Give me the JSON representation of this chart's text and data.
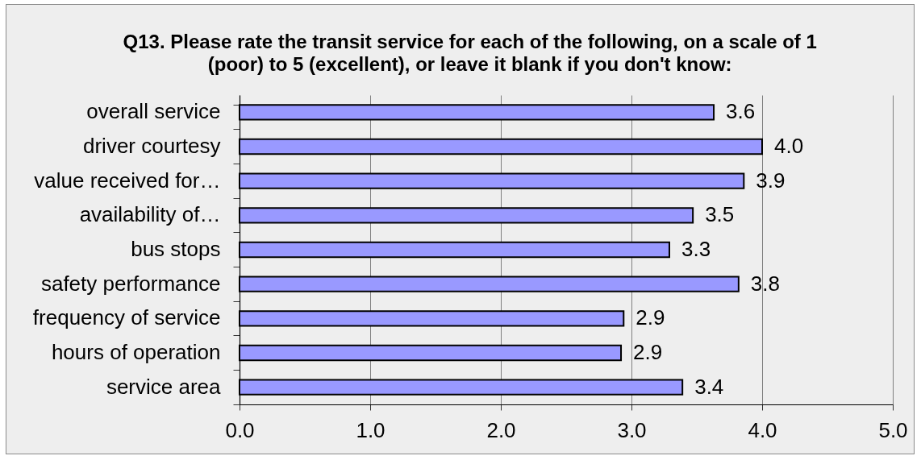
{
  "chart_data": {
    "type": "bar",
    "orientation": "horizontal",
    "title": "Q13. Please rate the transit service for each of the following, on a scale of 1\n(poor) to 5 (excellent), or leave it blank if you don't know:",
    "categories": [
      "overall service",
      "driver courtesy",
      "value received for…",
      "availability of…",
      "bus stops",
      "safety performance",
      "frequency of service",
      "hours of operation",
      "service area"
    ],
    "values": [
      3.63,
      4.0,
      3.86,
      3.47,
      3.29,
      3.82,
      2.94,
      2.92,
      3.39
    ],
    "value_labels": [
      "3.6",
      "4.0",
      "3.9",
      "3.5",
      "3.3",
      "3.8",
      "2.9",
      "2.9",
      "3.4"
    ],
    "color": "#9999ff",
    "xlim": [
      0,
      5
    ],
    "xticks": [
      {
        "value": 0,
        "label": "0.0"
      },
      {
        "value": 1,
        "label": "1.0"
      },
      {
        "value": 2,
        "label": "2.0"
      },
      {
        "value": 3,
        "label": "3.0"
      },
      {
        "value": 4,
        "label": "4.0"
      },
      {
        "value": 5,
        "label": "5.0"
      }
    ],
    "grid": "x"
  }
}
